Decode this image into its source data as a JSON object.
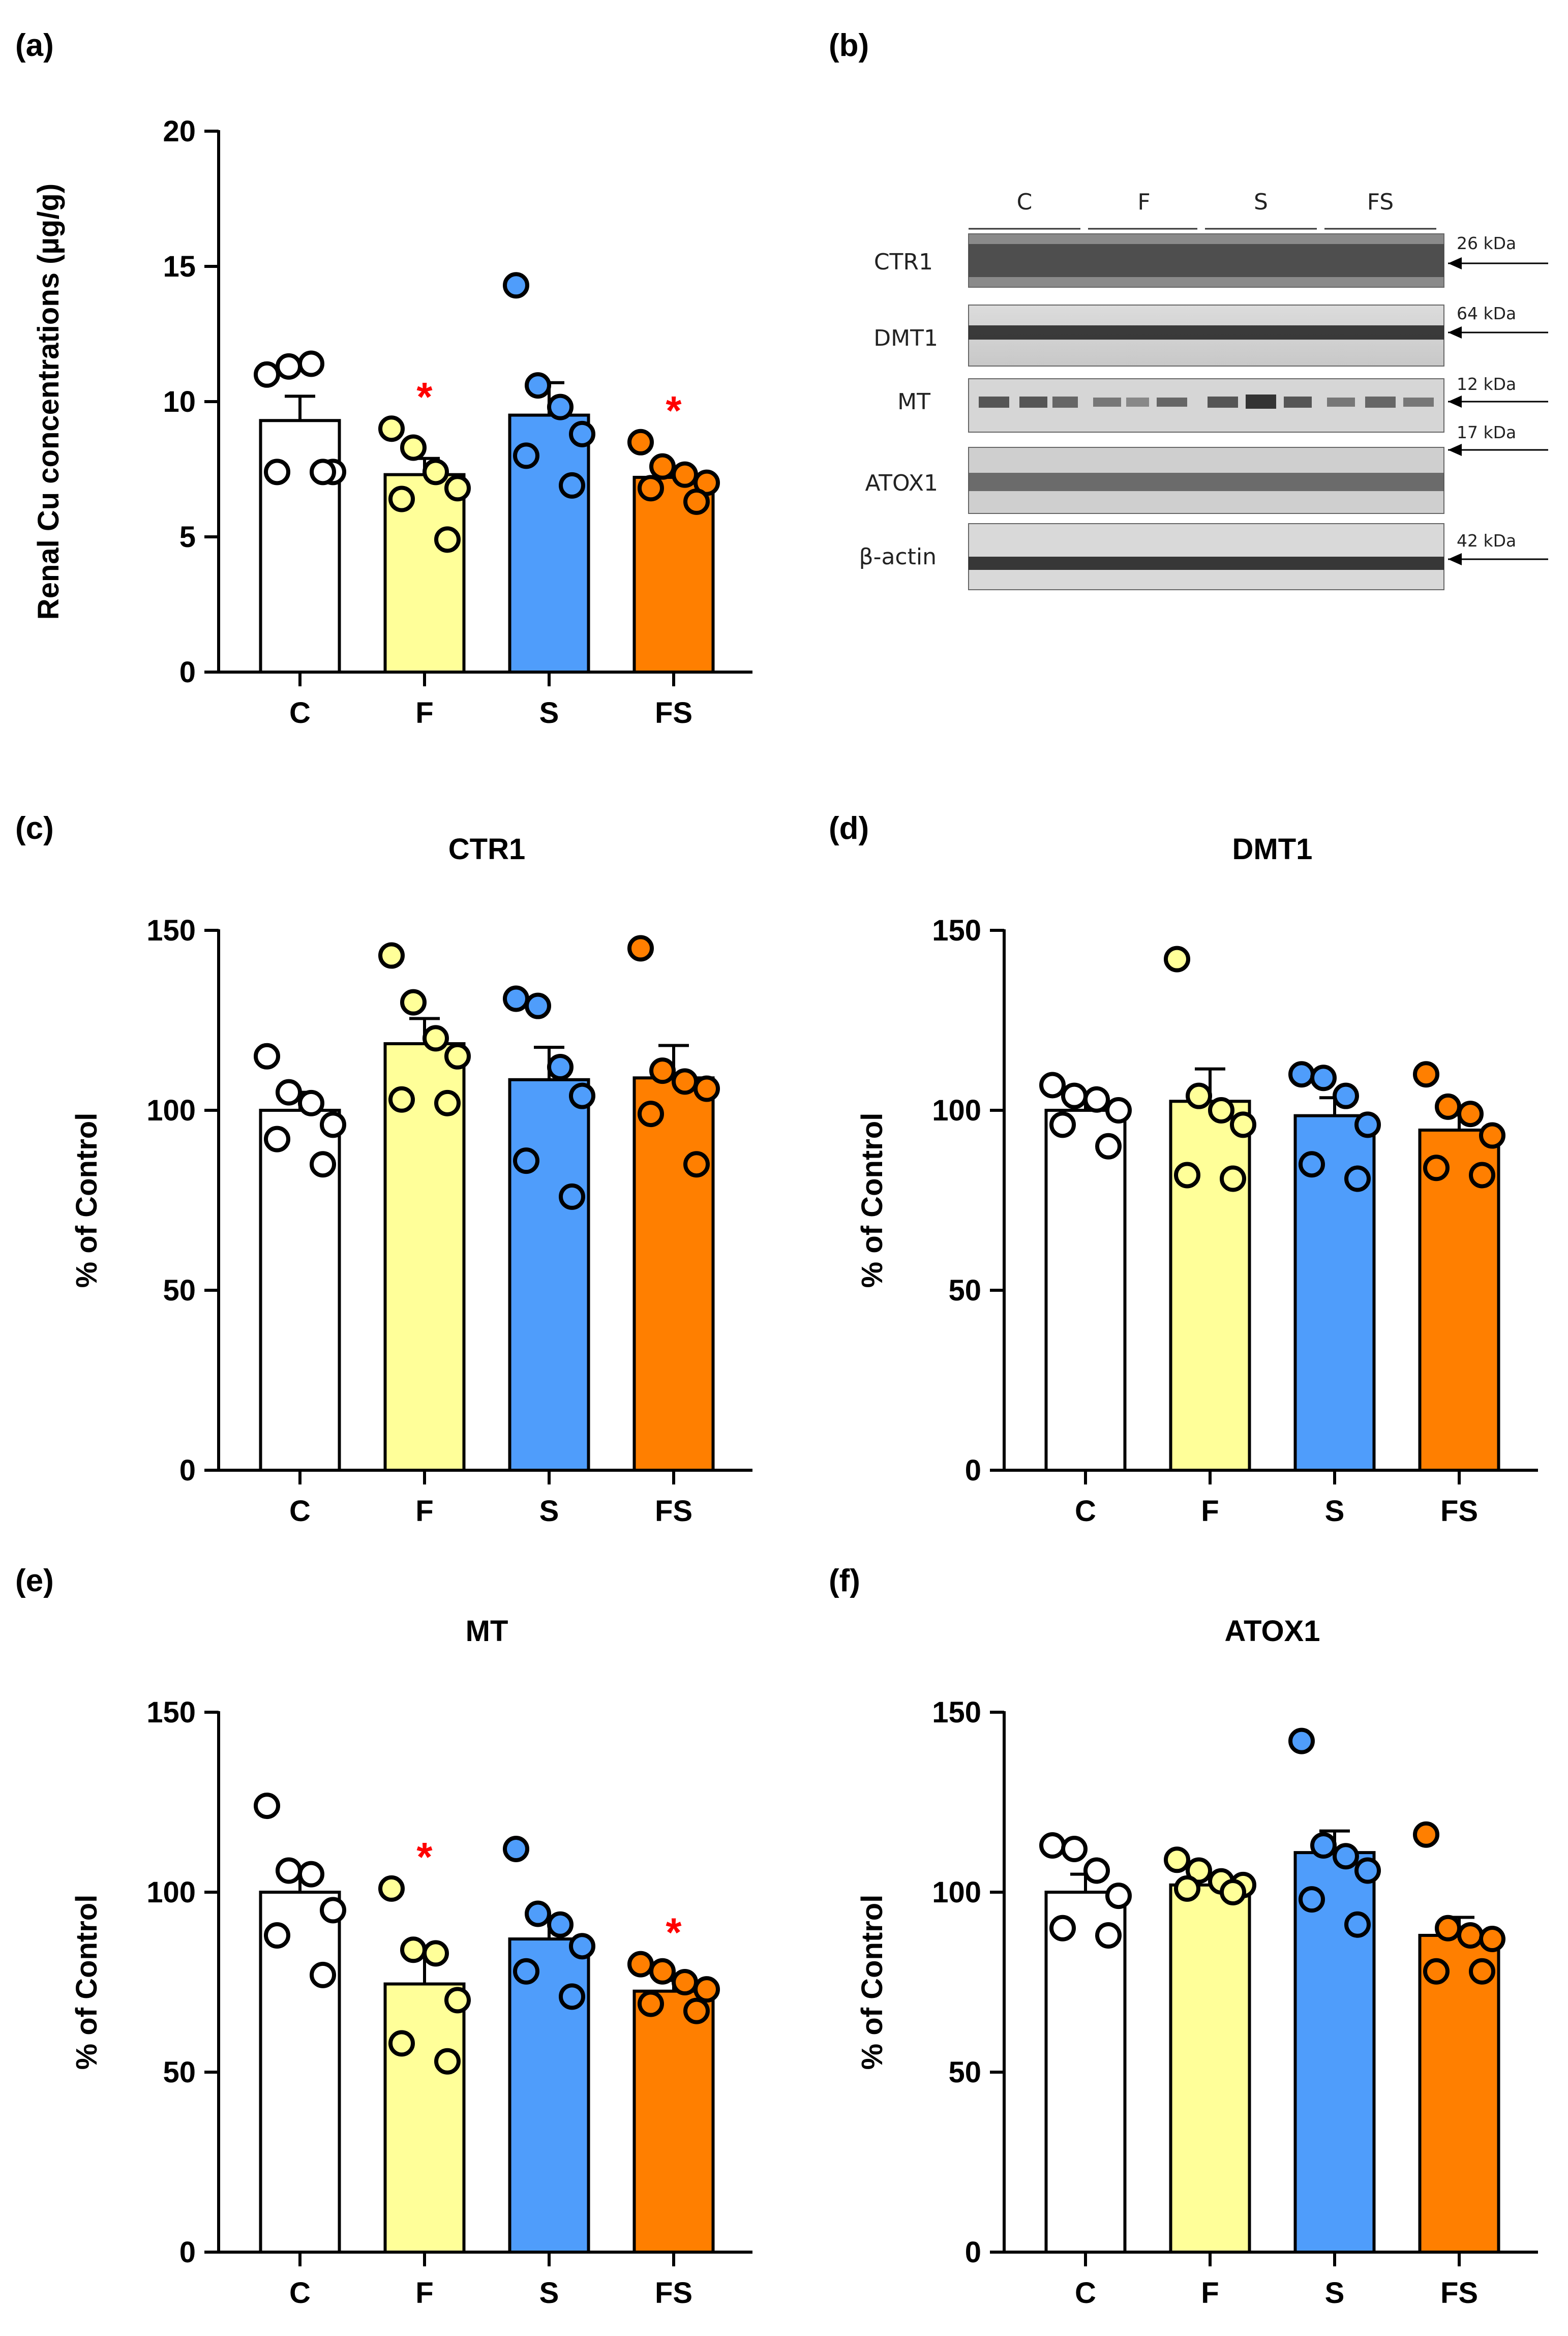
{
  "groups": [
    {
      "label": "C",
      "color": "#ffffff"
    },
    {
      "label": "F",
      "color": "#ffff99"
    },
    {
      "label": "S",
      "color": "#4f9dfb"
    },
    {
      "label": "FS",
      "color": "#ff7f00"
    }
  ],
  "significance_color": "#ff0000",
  "significance_symbol": "*",
  "chart_data": [
    {
      "panel": "(a)",
      "type": "bar",
      "title": "",
      "ylabel": "Renal Cu concentrations (µg/g)",
      "ylim": [
        0,
        20
      ],
      "yticks": [
        0,
        5,
        10,
        15,
        20
      ],
      "categories": [
        "C",
        "F",
        "S",
        "FS"
      ],
      "values": [
        9.3,
        7.3,
        9.5,
        7.2
      ],
      "sem": [
        0.9,
        0.6,
        1.2,
        0.3
      ],
      "points": [
        [
          11.0,
          11.3,
          11.4,
          7.4,
          7.4,
          7.4
        ],
        [
          9.0,
          8.3,
          7.4,
          6.8,
          6.4,
          4.9
        ],
        [
          14.3,
          10.6,
          9.8,
          8.8,
          8.0,
          6.9
        ],
        [
          8.5,
          7.6,
          7.3,
          7.0,
          6.8,
          6.3
        ]
      ],
      "significant": [
        false,
        true,
        false,
        true
      ]
    },
    {
      "panel": "(c)",
      "type": "bar",
      "title": "CTR1",
      "ylabel": "% of Control",
      "ylim": [
        0,
        150
      ],
      "yticks": [
        0,
        50,
        100,
        150
      ],
      "categories": [
        "C",
        "F",
        "S",
        "FS"
      ],
      "values": [
        100,
        118.5,
        108.5,
        109
      ],
      "sem": [
        5,
        7,
        9,
        9
      ],
      "points": [
        [
          115,
          105,
          102,
          96,
          92,
          85
        ],
        [
          143,
          130,
          120,
          115,
          103,
          102
        ],
        [
          131,
          129,
          112,
          104,
          86,
          76
        ],
        [
          145,
          111,
          108,
          106,
          99,
          85
        ]
      ],
      "significant": [
        false,
        false,
        false,
        false
      ]
    },
    {
      "panel": "(d)",
      "type": "bar",
      "title": "DMT1",
      "ylabel": "% of Control",
      "ylim": [
        0,
        150
      ],
      "yticks": [
        0,
        50,
        100,
        150
      ],
      "categories": [
        "C",
        "F",
        "S",
        "FS"
      ],
      "values": [
        100,
        102.5,
        98.5,
        94.5
      ],
      "sem": [
        3,
        9,
        5,
        5
      ],
      "points": [
        [
          107,
          104,
          103,
          100,
          96,
          90
        ],
        [
          142,
          104,
          100,
          96,
          82,
          81
        ],
        [
          110,
          109,
          104,
          96,
          85,
          81
        ],
        [
          110,
          101,
          99,
          93,
          84,
          82
        ]
      ],
      "significant": [
        false,
        false,
        false,
        false
      ]
    },
    {
      "panel": "(e)",
      "type": "bar",
      "title": "MT",
      "ylabel": "% of Control",
      "ylim": [
        0,
        150
      ],
      "yticks": [
        0,
        50,
        100,
        150
      ],
      "categories": [
        "C",
        "F",
        "S",
        "FS"
      ],
      "values": [
        100,
        74.5,
        87,
        72.5
      ],
      "sem": [
        7,
        8,
        6,
        3
      ],
      "points": [
        [
          124,
          106,
          105,
          95,
          88,
          77
        ],
        [
          101,
          84,
          83,
          70,
          58,
          53
        ],
        [
          112,
          94,
          91,
          85,
          78,
          71
        ],
        [
          80,
          78,
          75,
          73,
          69,
          67
        ]
      ],
      "significant": [
        false,
        true,
        false,
        true
      ]
    },
    {
      "panel": "(f)",
      "type": "bar",
      "title": "ATOX1",
      "ylabel": "% of Control",
      "ylim": [
        0,
        150
      ],
      "yticks": [
        0,
        50,
        100,
        150
      ],
      "categories": [
        "C",
        "F",
        "S",
        "FS"
      ],
      "values": [
        100,
        102,
        111,
        88
      ],
      "sem": [
        5,
        2,
        6,
        5
      ],
      "points": [
        [
          113,
          112,
          106,
          99,
          90,
          88
        ],
        [
          109,
          106,
          103,
          102,
          101,
          100
        ],
        [
          142,
          113,
          110,
          106,
          98,
          91
        ],
        [
          116,
          90,
          88,
          87,
          78,
          78
        ]
      ],
      "significant": [
        false,
        false,
        false,
        false
      ]
    }
  ],
  "blot": {
    "panel": "(b)",
    "groups": [
      "C",
      "F",
      "S",
      "FS"
    ],
    "lanes": [
      {
        "label": "CTR1",
        "kda": "26 kDa"
      },
      {
        "label": "DMT1",
        "kda": "64 kDa"
      },
      {
        "label": "MT",
        "kda": "12 kDa"
      },
      {
        "label": "ATOX1",
        "kda": "17 kDa"
      },
      {
        "label": "β-actin",
        "kda": "42 kDa"
      }
    ]
  }
}
